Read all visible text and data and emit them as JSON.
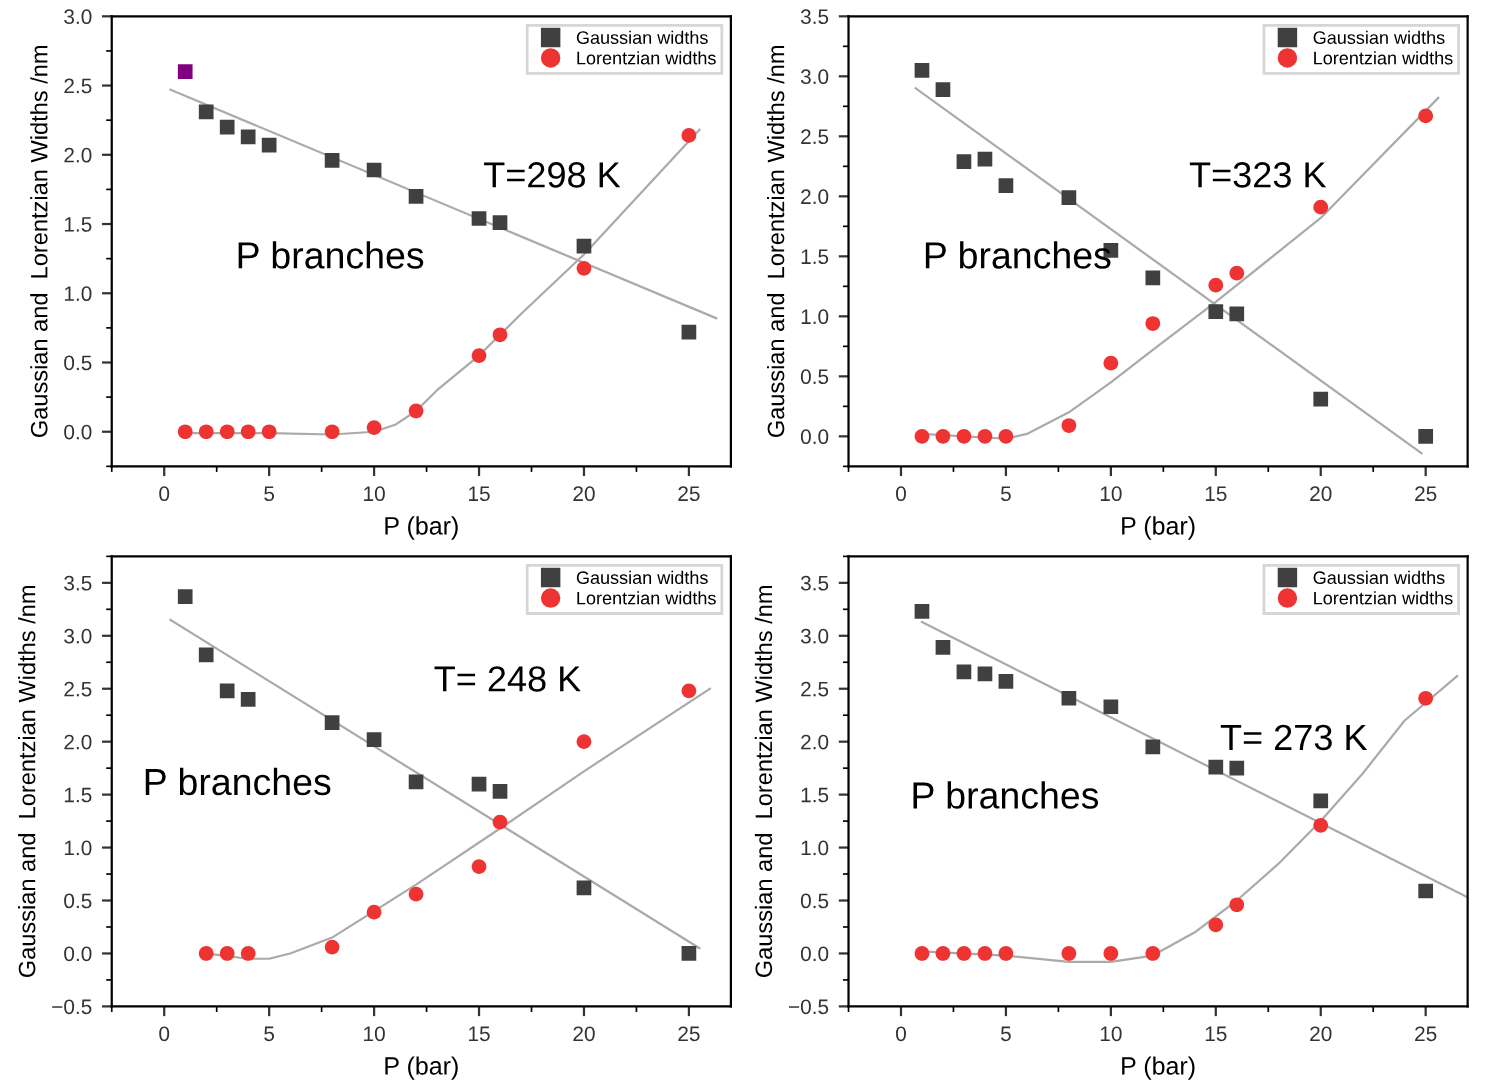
{
  "chart_data": [
    {
      "type": "scatter",
      "xlabel": "P (bar)",
      "ylabel": "Gaussian and  Lorentzian Widths /nm",
      "xlim": [
        -2.5,
        27
      ],
      "ylim": [
        -0.25,
        3.0
      ],
      "xticks": [
        0,
        5,
        10,
        15,
        20,
        25
      ],
      "yticks": [
        {
          "value": 0,
          "label": "0.0"
        },
        0.5,
        {
          "value": 1,
          "label": "1.0"
        },
        1.5,
        {
          "value": 2,
          "label": "2.0"
        },
        2.5,
        {
          "value": 3,
          "label": "3.0"
        }
      ],
      "legend": "top right",
      "grid": false,
      "annotations": [
        "T=298 K",
        "P branches"
      ],
      "series": [
        {
          "name": "Gaussian widths",
          "type": "scatter",
          "marker": "square",
          "color": "#404040",
          "colors": [
            "#800080",
            "#404040",
            "#404040",
            "#404040",
            "#404040",
            "#404040",
            "#404040",
            "#404040",
            "#404040",
            "#404040",
            "#404040",
            "#404040"
          ],
          "x": [
            1,
            2,
            3,
            4,
            5,
            8,
            10,
            12,
            15,
            16,
            20,
            25
          ],
          "values": [
            2.6,
            2.31,
            2.2,
            2.13,
            2.07,
            1.96,
            1.89,
            1.7,
            1.54,
            1.51,
            1.34,
            0.72
          ]
        },
        {
          "name": "Lorentzian widths",
          "type": "scatter",
          "marker": "circle",
          "color": "#ee3333",
          "x": [
            1,
            2,
            3,
            4,
            5,
            8,
            10,
            12,
            15,
            16,
            20,
            25
          ],
          "values": [
            0,
            0,
            0,
            0,
            0,
            0,
            0.03,
            0.15,
            0.55,
            0.7,
            1.18,
            2.14
          ]
        },
        {
          "type": "line",
          "color": "#aaaaaa",
          "x": [
            0.3,
            26.3
          ],
          "values": [
            2.47,
            0.82
          ]
        },
        {
          "type": "line",
          "color": "#aaaaaa",
          "x": [
            1,
            5,
            8,
            10,
            11,
            12,
            13,
            15,
            17,
            20,
            25.5
          ],
          "values": [
            -0.01,
            -0.01,
            -0.02,
            0.0,
            0.05,
            0.15,
            0.3,
            0.55,
            0.85,
            1.28,
            2.18
          ]
        }
      ]
    },
    {
      "type": "scatter",
      "xlabel": "P (bar)",
      "ylabel": "Gaussian and  Lorentzian Widths /nm",
      "xlim": [
        -2.5,
        27
      ],
      "ylim": [
        -0.25,
        3.5
      ],
      "xticks": [
        0,
        5,
        10,
        15,
        20,
        25
      ],
      "yticks": [
        {
          "value": 0,
          "label": "0.0"
        },
        0.5,
        {
          "value": 1,
          "label": "1.0"
        },
        1.5,
        {
          "value": 2,
          "label": "2.0"
        },
        2.5,
        {
          "value": 3,
          "label": "3.0"
        },
        3.5
      ],
      "legend": "top right",
      "grid": false,
      "annotations": [
        "T=323 K",
        "P branches"
      ],
      "series": [
        {
          "name": "Gaussian widths",
          "type": "scatter",
          "marker": "square",
          "color": "#404040",
          "x": [
            1,
            2,
            3,
            4,
            5,
            8,
            10,
            12,
            15,
            16,
            20,
            25
          ],
          "values": [
            3.05,
            2.89,
            2.29,
            2.31,
            2.09,
            1.99,
            1.55,
            1.32,
            1.04,
            1.02,
            0.31,
            0.0
          ]
        },
        {
          "name": "Lorentzian widths",
          "type": "scatter",
          "marker": "circle",
          "color": "#ee3333",
          "x": [
            1,
            2,
            3,
            4,
            5,
            8,
            10,
            12,
            15,
            16,
            20,
            25
          ],
          "values": [
            0,
            0,
            0,
            0,
            0,
            0.09,
            0.61,
            0.94,
            1.26,
            1.36,
            1.91,
            2.67
          ]
        },
        {
          "type": "line",
          "color": "#aaaaaa",
          "x": [
            0.7,
            24.8
          ],
          "values": [
            2.9,
            -0.14
          ]
        },
        {
          "type": "line",
          "color": "#aaaaaa",
          "x": [
            1,
            5,
            6,
            8,
            10,
            12,
            15,
            20,
            25.6
          ],
          "values": [
            0.02,
            -0.02,
            0.02,
            0.2,
            0.45,
            0.72,
            1.12,
            1.82,
            2.82
          ]
        }
      ]
    },
    {
      "type": "scatter",
      "xlabel": "P (bar)",
      "ylabel": "Gaussian and  Lorentzian Widths /nm",
      "xlim": [
        -2.5,
        27
      ],
      "ylim": [
        -0.5,
        3.75
      ],
      "xticks": [
        0,
        5,
        10,
        15,
        20,
        25
      ],
      "yticks": [
        {
          "value": -0.5,
          "label": "−0.5"
        },
        {
          "value": 0,
          "label": "0.0"
        },
        0.5,
        {
          "value": 1,
          "label": "1.0"
        },
        1.5,
        {
          "value": 2,
          "label": "2.0"
        },
        2.5,
        {
          "value": 3,
          "label": "3.0"
        },
        3.5
      ],
      "legend": "top right",
      "grid": false,
      "annotations": [
        "T= 248 K",
        "P branches"
      ],
      "series": [
        {
          "name": "Gaussian widths",
          "type": "scatter",
          "marker": "square",
          "color": "#404040",
          "x": [
            1,
            2,
            3,
            4,
            8,
            10,
            12,
            15,
            16,
            20,
            25
          ],
          "values": [
            3.37,
            2.82,
            2.48,
            2.4,
            2.18,
            2.02,
            1.62,
            1.6,
            1.53,
            0.62,
            0.0
          ]
        },
        {
          "name": "Lorentzian widths",
          "type": "scatter",
          "marker": "circle",
          "color": "#ee3333",
          "x": [
            2,
            3,
            4,
            8,
            10,
            12,
            15,
            16,
            20,
            25
          ],
          "values": [
            0,
            0,
            0,
            0.06,
            0.39,
            0.56,
            0.82,
            1.24,
            2.0,
            2.48
          ]
        },
        {
          "type": "line",
          "color": "#aaaaaa",
          "x": [
            0.3,
            25.5
          ],
          "values": [
            3.15,
            0.05
          ]
        },
        {
          "type": "line",
          "color": "#aaaaaa",
          "x": [
            2,
            4,
            5,
            6,
            8,
            10,
            12,
            16,
            20,
            26
          ],
          "values": [
            0.0,
            -0.05,
            -0.05,
            0.0,
            0.15,
            0.4,
            0.65,
            1.18,
            1.72,
            2.5
          ]
        }
      ]
    },
    {
      "type": "scatter",
      "xlabel": "P (bar)",
      "ylabel": "Gaussian and  Lorentzian Widths /nm",
      "xlim": [
        -2.5,
        27
      ],
      "ylim": [
        -0.5,
        3.75
      ],
      "xticks": [
        0,
        5,
        10,
        15,
        20,
        25
      ],
      "yticks": [
        {
          "value": -0.5,
          "label": "−0.5"
        },
        {
          "value": 0,
          "label": "0.0"
        },
        0.5,
        {
          "value": 1,
          "label": "1.0"
        },
        1.5,
        {
          "value": 2,
          "label": "2.0"
        },
        2.5,
        {
          "value": 3,
          "label": "3.0"
        },
        3.5
      ],
      "legend": "top right",
      "grid": false,
      "annotations": [
        "T= 273 K",
        "P branches"
      ],
      "series": [
        {
          "name": "Gaussian widths",
          "type": "scatter",
          "marker": "square",
          "color": "#404040",
          "x": [
            1,
            2,
            3,
            4,
            5,
            8,
            10,
            12,
            15,
            16,
            20,
            25
          ],
          "values": [
            3.23,
            2.89,
            2.66,
            2.64,
            2.57,
            2.41,
            2.33,
            1.95,
            1.76,
            1.75,
            1.44,
            0.59
          ]
        },
        {
          "name": "Lorentzian widths",
          "type": "scatter",
          "marker": "circle",
          "color": "#ee3333",
          "x": [
            1,
            2,
            3,
            4,
            5,
            8,
            10,
            12,
            15,
            16,
            20,
            25
          ],
          "values": [
            0,
            0,
            0,
            0,
            0,
            0,
            0,
            0,
            0.27,
            0.46,
            1.21,
            2.41
          ]
        },
        {
          "type": "line",
          "color": "#aaaaaa",
          "x": [
            1,
            27
          ],
          "values": [
            3.13,
            0.53
          ]
        },
        {
          "type": "line",
          "color": "#aaaaaa",
          "x": [
            1,
            5,
            8,
            10,
            12,
            14,
            16,
            18,
            20,
            22,
            24,
            26.5
          ],
          "values": [
            0.02,
            -0.02,
            -0.08,
            -0.08,
            -0.02,
            0.2,
            0.5,
            0.85,
            1.25,
            1.7,
            2.2,
            2.62
          ]
        }
      ]
    }
  ]
}
